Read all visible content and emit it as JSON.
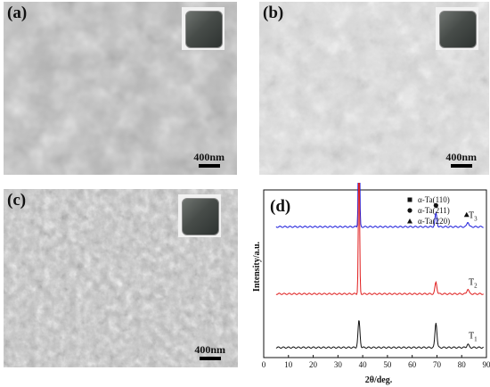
{
  "panels": [
    {
      "id": "a",
      "label": "(a)",
      "scale": "400nm"
    },
    {
      "id": "b",
      "label": "(b)",
      "scale": "400nm"
    },
    {
      "id": "c",
      "label": "(c)",
      "scale": "400nm"
    }
  ],
  "chart_data": {
    "type": "line",
    "label": "(d)",
    "xlabel": "2θ/deg.",
    "ylabel": "Intensity/a.u.",
    "xlim": [
      0,
      90
    ],
    "xticks": [
      0,
      10,
      20,
      30,
      40,
      50,
      60,
      70,
      80,
      90
    ],
    "legend_position": "top-right",
    "legend": [
      {
        "marker": "square",
        "label": "α-Ta(110)"
      },
      {
        "marker": "circle",
        "label": "α-Ta(211)"
      },
      {
        "marker": "triangle",
        "label": "α-Ta(220)"
      }
    ],
    "series": [
      {
        "name": "T3",
        "label_main": "T",
        "label_sub": "3",
        "color": "#1a1adb",
        "baseline": 0.78,
        "peaks": [
          {
            "x": 38.5,
            "h": 0.78
          },
          {
            "x": 69.6,
            "h": 0.08
          },
          {
            "x": 82.5,
            "h": 0.03
          }
        ]
      },
      {
        "name": "T2",
        "label_main": "T",
        "label_sub": "2",
        "color": "#e01b1b",
        "baseline": 0.38,
        "peaks": [
          {
            "x": 38.5,
            "h": 0.82
          },
          {
            "x": 69.6,
            "h": 0.07
          },
          {
            "x": 82.5,
            "h": 0.03
          }
        ]
      },
      {
        "name": "T1",
        "label_main": "T",
        "label_sub": "1",
        "color": "#111111",
        "baseline": 0.06,
        "peaks": [
          {
            "x": 38.5,
            "h": 0.16
          },
          {
            "x": 69.6,
            "h": 0.15
          },
          {
            "x": 82.5,
            "h": 0.02
          }
        ]
      }
    ],
    "peak_markers": [
      {
        "marker": "square",
        "x": 38.5
      },
      {
        "marker": "circle",
        "x": 69.6
      },
      {
        "marker": "triangle",
        "x": 82.0
      }
    ]
  }
}
